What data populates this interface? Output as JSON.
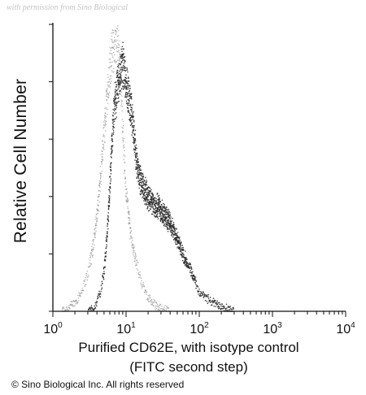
{
  "watermark": "with permission from Sino Biological",
  "copyright": "© Sino Biological Inc. All rights reserved",
  "chart_data": {
    "type": "area",
    "title": "",
    "xlabel_line1": "Purified  CD62E, with isotype control",
    "xlabel_line2": "(FITC second step)",
    "ylabel": "Relative Cell Number",
    "x_scale": "log",
    "xlim": [
      1,
      10000
    ],
    "ylim": [
      0,
      1
    ],
    "grid": false,
    "legend": "none",
    "x_ticks": [
      {
        "value": 1,
        "base": "10",
        "exp": "0"
      },
      {
        "value": 10,
        "base": "10",
        "exp": "1"
      },
      {
        "value": 100,
        "base": "10",
        "exp": "2"
      },
      {
        "value": 1000,
        "base": "10",
        "exp": "3"
      },
      {
        "value": 10000,
        "base": "10",
        "exp": "4"
      }
    ],
    "y_ticks": [
      0,
      0.2,
      0.4,
      0.6,
      0.8,
      1.0
    ],
    "series": [
      {
        "style": "light-dotted",
        "color": "#9a9a9a",
        "x": [
          1.0,
          1.3,
          1.6,
          2.0,
          2.5,
          3.0,
          3.5,
          4.0,
          4.5,
          5.0,
          5.5,
          6.0,
          6.5,
          7.0,
          7.5,
          8.0,
          8.5,
          9.0,
          9.5,
          10,
          11,
          12,
          13,
          14,
          16,
          18,
          20,
          25,
          30,
          40,
          50,
          60
        ],
        "values": [
          0.0,
          0.0,
          0.01,
          0.03,
          0.07,
          0.13,
          0.22,
          0.33,
          0.47,
          0.62,
          0.75,
          0.85,
          0.9,
          0.93,
          0.96,
          0.9,
          0.8,
          0.66,
          0.52,
          0.42,
          0.32,
          0.25,
          0.2,
          0.16,
          0.11,
          0.07,
          0.05,
          0.02,
          0.01,
          0.0,
          0.0,
          0.0
        ]
      },
      {
        "style": "dark-dotted",
        "color": "#2a2a2a",
        "x": [
          3.0,
          3.5,
          4.0,
          4.5,
          5.0,
          5.5,
          6.0,
          6.5,
          7.0,
          7.5,
          8.0,
          8.5,
          9.0,
          9.5,
          10,
          11,
          12,
          13,
          14,
          16,
          18,
          20,
          22,
          25,
          28,
          30,
          35,
          40,
          45,
          50,
          60,
          70,
          80,
          90,
          100,
          120,
          150,
          200,
          250,
          300,
          400,
          500,
          700,
          1000,
          2000,
          5000,
          10000
        ],
        "values": [
          0.0,
          0.01,
          0.03,
          0.07,
          0.14,
          0.26,
          0.43,
          0.6,
          0.72,
          0.76,
          0.8,
          0.84,
          0.86,
          0.84,
          0.8,
          0.74,
          0.68,
          0.6,
          0.52,
          0.45,
          0.42,
          0.4,
          0.39,
          0.36,
          0.37,
          0.35,
          0.33,
          0.31,
          0.28,
          0.25,
          0.2,
          0.16,
          0.13,
          0.1,
          0.07,
          0.05,
          0.03,
          0.02,
          0.01,
          0.0,
          0.0,
          0.0,
          0.0,
          0.0,
          0.0,
          0.0,
          0.0
        ]
      }
    ]
  }
}
